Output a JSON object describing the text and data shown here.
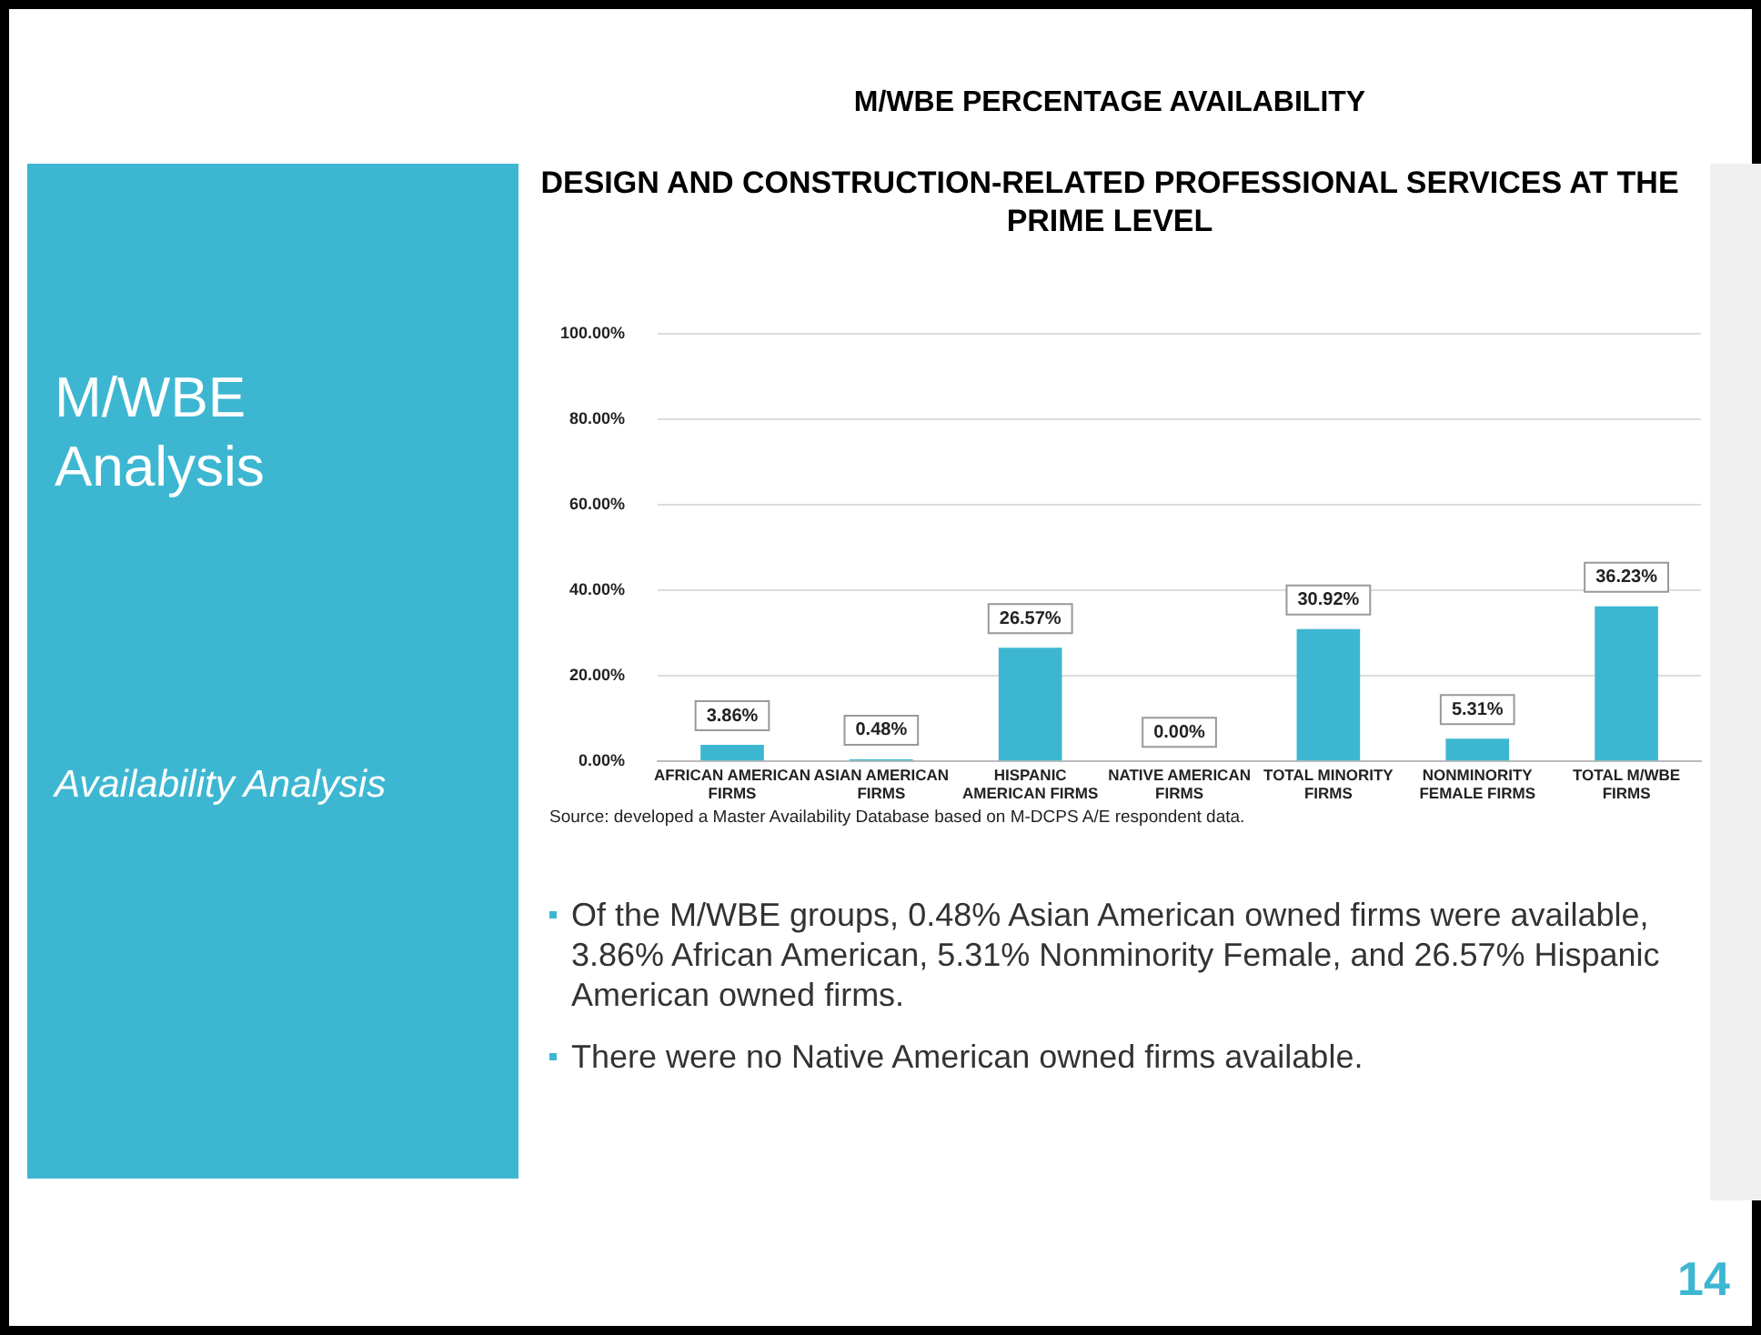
{
  "chart_data": {
    "type": "bar",
    "title": "M/WBE PERCENTAGE AVAILABILITY",
    "subtitle": "DESIGN AND CONSTRUCTION-RELATED PROFESSIONAL SERVICES AT THE PRIME LEVEL",
    "categories": [
      "AFRICAN AMERICAN FIRMS",
      "ASIAN AMERICAN FIRMS",
      "HISPANIC AMERICAN FIRMS",
      "NATIVE AMERICAN FIRMS",
      "TOTAL MINORITY FIRMS",
      "NONMINORITY FEMALE FIRMS",
      "TOTAL M/WBE FIRMS"
    ],
    "values": [
      3.86,
      0.48,
      26.57,
      0,
      30.92,
      5.31,
      36.23
    ],
    "value_labels": [
      "3.86%",
      "0.48%",
      "26.57%",
      "0.00%",
      "30.92%",
      "5.31%",
      "36.23%"
    ],
    "color": "#3db7d1",
    "ylim": [
      0,
      100
    ],
    "yticks": [
      {
        "value": 0,
        "label": "0.00%"
      },
      {
        "value": 20,
        "label": "20.00%"
      },
      {
        "value": 40,
        "label": "40.00%"
      },
      {
        "value": 60,
        "label": "60.00%"
      },
      {
        "value": 80,
        "label": "80.00%"
      },
      {
        "value": 100,
        "label": "100.00%"
      }
    ],
    "grid": "y",
    "annotations": [
      "M/WBE Analysis",
      "Availability Analysis",
      "Source: developed a Master Availability Database based on M-DCPS A/E respondent data.",
      "Of the M/WBE groups, 0.48% Asian American owned firms were available, 3.86% African American, 5.31% Nonminority Female, and 26.57% Hispanic American owned firms.",
      "There were no Native American owned firms available.",
      "14"
    ]
  }
}
